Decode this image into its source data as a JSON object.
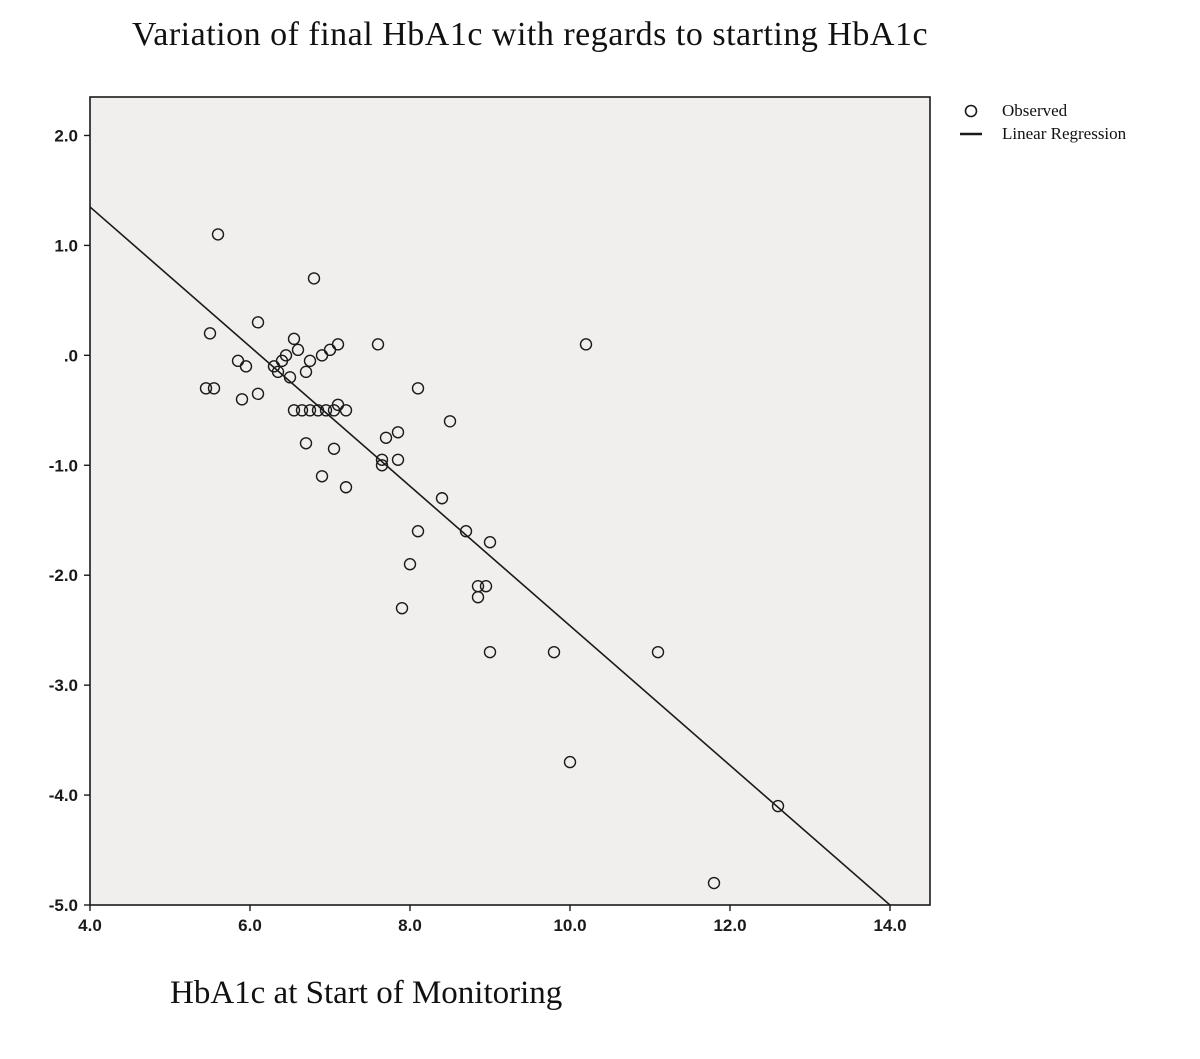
{
  "chart_data": {
    "type": "scatter",
    "title": "Variation of final HbA1c with regards to starting HbA1c",
    "xlabel": "HbA1c at Start of Monitoring",
    "ylabel": "",
    "xlim": [
      4.0,
      14.5
    ],
    "ylim": [
      -5.0,
      2.35
    ],
    "grid": false,
    "plot_bg": "#f0efed",
    "axis_color": "#1a1a1a",
    "marker_color": "#1a1a1a",
    "line_color": "#1a1a1a",
    "xticks": [
      4.0,
      6.0,
      8.0,
      10.0,
      12.0,
      14.0
    ],
    "xtick_labels": [
      "4.0",
      "6.0",
      "8.0",
      "10.0",
      "12.0",
      "14.0"
    ],
    "yticks": [
      2.0,
      1.0,
      0.0,
      -1.0,
      -2.0,
      -3.0,
      -4.0,
      -5.0
    ],
    "ytick_labels": [
      "2.0",
      "1.0",
      ".0",
      "-1.0",
      "-2.0",
      "-3.0",
      "-4.0",
      "-5.0"
    ],
    "legend": [
      {
        "marker": "circle",
        "label": "Observed"
      },
      {
        "marker": "line",
        "label": "Linear Regression"
      }
    ],
    "legend_position": "top-right-outside",
    "regression": {
      "x1": 4.0,
      "y1": 1.35,
      "x2": 14.0,
      "y2": -5.0
    },
    "points": [
      [
        5.6,
        1.1
      ],
      [
        6.8,
        0.7
      ],
      [
        5.5,
        0.2
      ],
      [
        6.1,
        0.3
      ],
      [
        6.55,
        0.15
      ],
      [
        6.6,
        0.05
      ],
      [
        5.85,
        -0.05
      ],
      [
        5.95,
        -0.1
      ],
      [
        6.3,
        -0.1
      ],
      [
        6.35,
        -0.15
      ],
      [
        6.4,
        -0.05
      ],
      [
        6.45,
        0.0
      ],
      [
        6.5,
        -0.2
      ],
      [
        6.7,
        -0.15
      ],
      [
        6.75,
        -0.05
      ],
      [
        6.9,
        0.0
      ],
      [
        7.0,
        0.05
      ],
      [
        7.1,
        0.1
      ],
      [
        7.6,
        0.1
      ],
      [
        10.2,
        0.1
      ],
      [
        5.45,
        -0.3
      ],
      [
        5.55,
        -0.3
      ],
      [
        5.9,
        -0.4
      ],
      [
        6.1,
        -0.35
      ],
      [
        8.1,
        -0.3
      ],
      [
        6.55,
        -0.5
      ],
      [
        6.65,
        -0.5
      ],
      [
        6.75,
        -0.5
      ],
      [
        6.85,
        -0.5
      ],
      [
        6.95,
        -0.5
      ],
      [
        7.05,
        -0.5
      ],
      [
        7.1,
        -0.45
      ],
      [
        7.2,
        -0.5
      ],
      [
        8.5,
        -0.6
      ],
      [
        6.7,
        -0.8
      ],
      [
        7.05,
        -0.85
      ],
      [
        7.7,
        -0.75
      ],
      [
        7.85,
        -0.7
      ],
      [
        7.65,
        -0.95
      ],
      [
        7.65,
        -1.0
      ],
      [
        7.85,
        -0.95
      ],
      [
        6.9,
        -1.1
      ],
      [
        7.2,
        -1.2
      ],
      [
        8.4,
        -1.3
      ],
      [
        8.1,
        -1.6
      ],
      [
        8.7,
        -1.6
      ],
      [
        9.0,
        -1.7
      ],
      [
        8.0,
        -1.9
      ],
      [
        8.85,
        -2.1
      ],
      [
        8.95,
        -2.1
      ],
      [
        8.85,
        -2.2
      ],
      [
        7.9,
        -2.3
      ],
      [
        9.0,
        -2.7
      ],
      [
        9.8,
        -2.7
      ],
      [
        11.1,
        -2.7
      ],
      [
        10.0,
        -3.7
      ],
      [
        12.6,
        -4.1
      ],
      [
        11.8,
        -4.8
      ]
    ]
  }
}
